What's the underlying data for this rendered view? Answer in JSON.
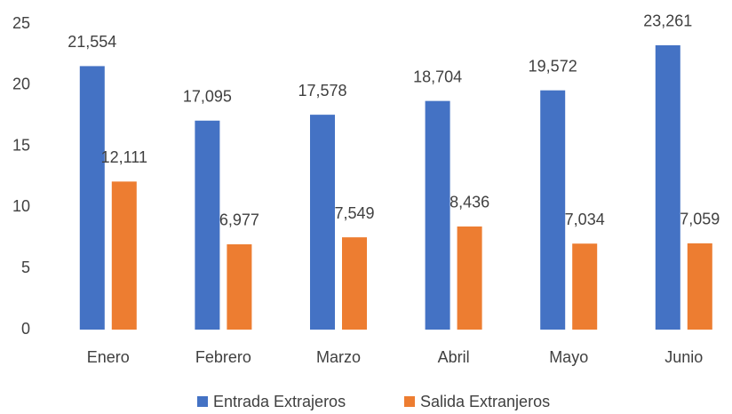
{
  "chart_data": {
    "type": "bar",
    "categories": [
      "Enero",
      "Febrero",
      "Marzo",
      "Abril",
      "Mayo",
      "Junio"
    ],
    "series": [
      {
        "name": "Entrada Extrajeros",
        "color": "#4472c4",
        "values": [
          21.554,
          17.095,
          17.578,
          18.704,
          19.572,
          23.261
        ],
        "value_labels": [
          "21,554",
          "17,095",
          "17,578",
          "18,704",
          "19,572",
          "23,261"
        ]
      },
      {
        "name": "Salida Extranjeros",
        "color": "#ed7d31",
        "values": [
          12.111,
          6.977,
          7.549,
          8.436,
          7.034,
          7.059
        ],
        "value_labels": [
          "12,111",
          "6,977",
          "7,549",
          "8,436",
          "7,034",
          "7,059"
        ]
      }
    ],
    "ylim": [
      0,
      25
    ],
    "yticks": [
      0,
      5,
      10,
      15,
      20,
      25
    ],
    "grid": false,
    "legend": "bottom"
  }
}
